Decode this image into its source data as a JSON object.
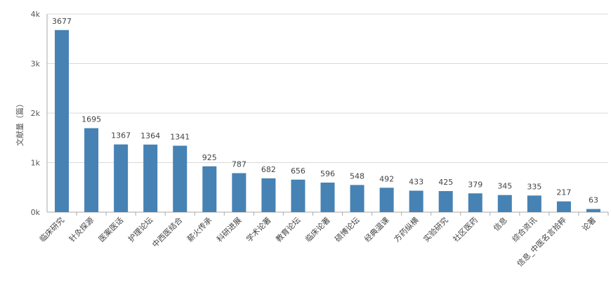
{
  "chart_data": {
    "type": "bar",
    "ylabel": "文献量（篇）",
    "ylim": [
      0,
      4000
    ],
    "yticks": [
      {
        "value": 0,
        "label": "0k"
      },
      {
        "value": 1000,
        "label": "1k"
      },
      {
        "value": 2000,
        "label": "2k"
      },
      {
        "value": 3000,
        "label": "3k"
      },
      {
        "value": 4000,
        "label": "4k"
      }
    ],
    "grid": true,
    "bar_color": "#4682b4",
    "categories": [
      "临床研究",
      "针灸探源",
      "医案医话",
      "护理论坛",
      "中西医结合",
      "薪火传承",
      "科研进展",
      "学术论著",
      "教育论坛",
      "临床论著",
      "硕博论坛",
      "经典温课",
      "方药纵横",
      "实验研究",
      "社区医药",
      "信息",
      "综合资讯",
      "信息_中医名言拾粹",
      "论著"
    ],
    "values": [
      3677,
      1695,
      1367,
      1364,
      1341,
      925,
      787,
      682,
      656,
      596,
      548,
      492,
      433,
      425,
      379,
      345,
      335,
      217,
      63
    ]
  }
}
